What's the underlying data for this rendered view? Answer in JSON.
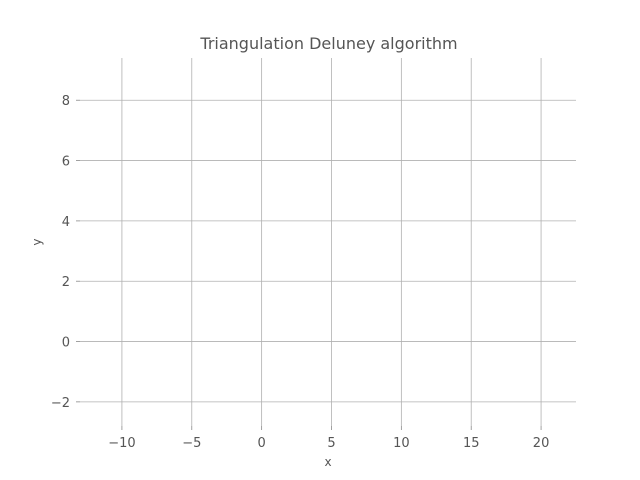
{
  "chart_data": {
    "type": "scatter",
    "title": "Triangulation Deluney algorithm",
    "xlabel": "x",
    "ylabel": "y",
    "xlim": [
      -13,
      22.5
    ],
    "ylim": [
      -2.8,
      9.4
    ],
    "xticks": [
      -10,
      -5,
      0,
      5,
      10,
      15,
      20
    ],
    "yticks": [
      -2,
      0,
      2,
      4,
      6,
      8
    ],
    "xtick_labels": [
      "−10",
      "−5",
      "0",
      "5",
      "10",
      "15",
      "20"
    ],
    "ytick_labels": [
      "−2",
      "0",
      "2",
      "4",
      "6",
      "8"
    ],
    "grid": true,
    "series": []
  }
}
